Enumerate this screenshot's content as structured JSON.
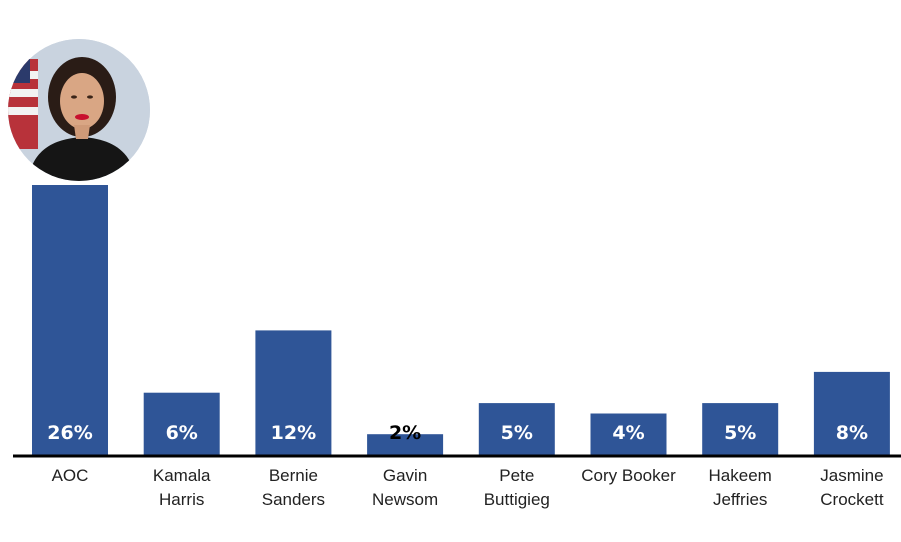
{
  "chart_data": {
    "type": "bar",
    "categories": [
      [
        "AOC"
      ],
      [
        "Kamala",
        "Harris"
      ],
      [
        "Bernie",
        "Sanders"
      ],
      [
        "Gavin",
        "Newsom"
      ],
      [
        "Pete",
        "Buttigieg"
      ],
      [
        "Cory Booker"
      ],
      [
        "Hakeem",
        "Jeffries"
      ],
      [
        "Jasmine",
        "Crockett"
      ]
    ],
    "values": [
      26,
      6,
      12,
      2,
      5,
      4,
      5,
      8
    ],
    "labels": [
      "26%",
      "6%",
      "12%",
      "2%",
      "5%",
      "4%",
      "5%",
      "8%"
    ],
    "ylim": [
      0,
      26
    ],
    "grid": false,
    "bar_color": "#2f5597",
    "label_color_inside": "#ffffff",
    "label_color_outside": "#000000"
  },
  "photo": {
    "icon": "portrait-photo"
  }
}
